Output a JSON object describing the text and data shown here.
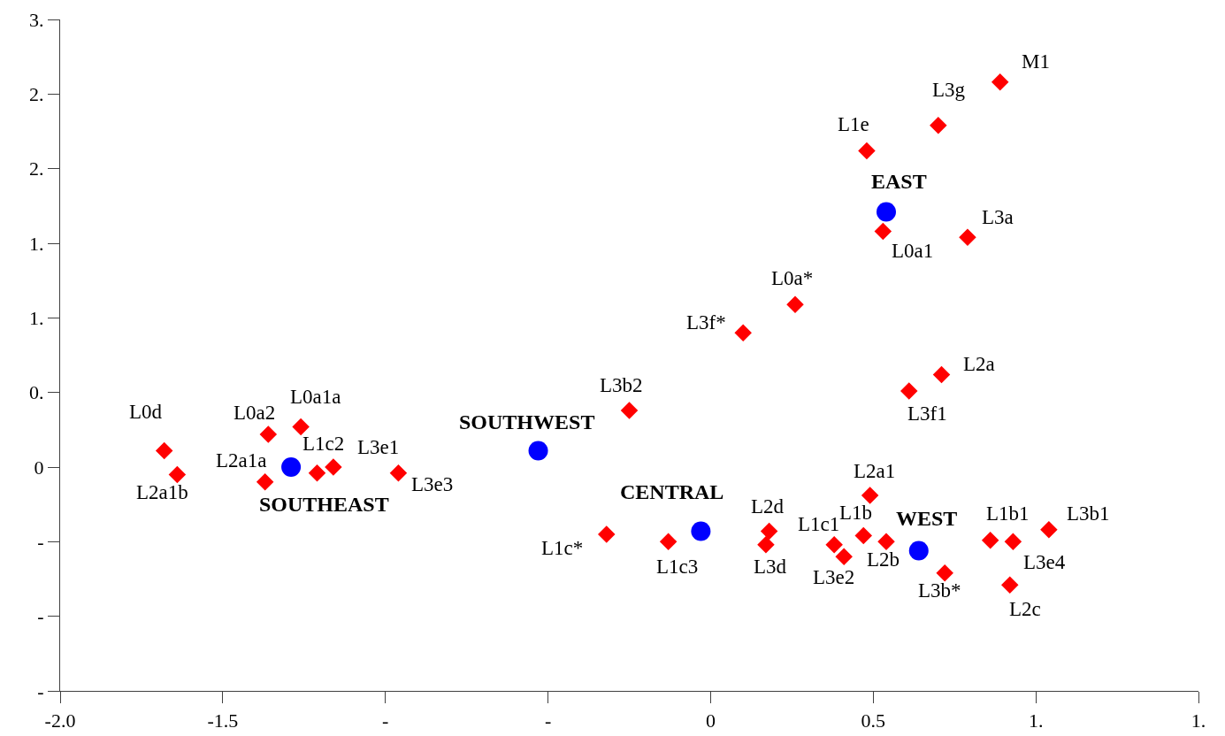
{
  "chart_data": {
    "type": "scatter",
    "xlim": [
      -2.0,
      1.5
    ],
    "ylim": [
      -1.5,
      3.0
    ],
    "xticks": [
      {
        "value": -2.0,
        "label": "-2.0"
      },
      -1.5,
      {
        "value": -1.0,
        "label": "-"
      },
      {
        "value": -0.5,
        "label": "-"
      },
      0,
      0.5,
      {
        "value": 1.0,
        "label": "1."
      },
      {
        "value": 1.5,
        "label": "1."
      }
    ],
    "yticks": [
      {
        "value": -1.5,
        "label": "-"
      },
      {
        "value": -1.0,
        "label": "-"
      },
      {
        "value": -0.5,
        "label": "-"
      },
      0,
      {
        "value": 0.5,
        "label": "0."
      },
      {
        "value": 1.0,
        "label": "1."
      },
      {
        "value": 1.5,
        "label": "1."
      },
      {
        "value": 2.0,
        "label": "2."
      },
      {
        "value": 2.5,
        "label": "2."
      },
      {
        "value": 3.0,
        "label": "3."
      }
    ],
    "series": [
      {
        "color": "#0000ff",
        "marker": "circle",
        "x": [
          -1.29,
          -0.53,
          -0.03,
          0.64,
          0.54
        ],
        "values": [
          0.0,
          0.11,
          -0.43,
          -0.56,
          1.71
        ]
      },
      {
        "color": "#ff0000",
        "marker": "diamond",
        "x": [
          -1.68,
          -1.64,
          -1.36,
          -1.26,
          -1.37,
          -1.21,
          -1.16,
          -0.96,
          -0.25,
          0.1,
          0.26,
          0.48,
          0.7,
          0.89,
          0.53,
          0.79,
          0.71,
          0.61,
          0.49,
          -0.32,
          -0.13,
          0.18,
          0.17,
          0.38,
          0.41,
          0.47,
          0.54,
          0.72,
          0.86,
          0.93,
          1.04,
          0.92
        ],
        "values": [
          0.11,
          -0.05,
          0.22,
          0.27,
          -0.1,
          -0.04,
          0.0,
          -0.04,
          0.38,
          0.9,
          1.09,
          2.12,
          2.29,
          2.58,
          1.58,
          1.54,
          0.62,
          0.51,
          -0.19,
          -0.45,
          -0.5,
          -0.43,
          -0.52,
          -0.52,
          -0.6,
          -0.46,
          -0.5,
          -0.71,
          -0.49,
          -0.5,
          -0.42,
          -0.79
        ]
      }
    ],
    "annotations": [
      {
        "text": "SOUTHEAST",
        "x": -1.29,
        "y": 0.0
      },
      {
        "text": "SOUTHWEST",
        "x": -0.53,
        "y": 0.11
      },
      {
        "text": "CENTRAL",
        "x": -0.03,
        "y": -0.43
      },
      {
        "text": "WEST",
        "x": 0.64,
        "y": -0.56
      },
      {
        "text": "EAST",
        "x": 0.54,
        "y": 1.71
      },
      {
        "text": "L0d",
        "x": -1.68,
        "y": 0.11
      },
      {
        "text": "L2a1b",
        "x": -1.64,
        "y": -0.05
      },
      {
        "text": "L0a2",
        "x": -1.36,
        "y": 0.22
      },
      {
        "text": "L0a1a",
        "x": -1.26,
        "y": 0.27
      },
      {
        "text": "L2a1a",
        "x": -1.37,
        "y": -0.1
      },
      {
        "text": "L1c2",
        "x": -1.21,
        "y": -0.04
      },
      {
        "text": "L3e1",
        "x": -1.16,
        "y": 0.0
      },
      {
        "text": "L3e3",
        "x": -0.96,
        "y": -0.04
      },
      {
        "text": "L3b2",
        "x": -0.25,
        "y": 0.38
      },
      {
        "text": "L3f*",
        "x": 0.1,
        "y": 0.9
      },
      {
        "text": "L0a*",
        "x": 0.26,
        "y": 1.09
      },
      {
        "text": "L1e",
        "x": 0.48,
        "y": 2.12
      },
      {
        "text": "L3g",
        "x": 0.7,
        "y": 2.29
      },
      {
        "text": "M1",
        "x": 0.89,
        "y": 2.58
      },
      {
        "text": "L0a1",
        "x": 0.53,
        "y": 1.58
      },
      {
        "text": "L3a",
        "x": 0.79,
        "y": 1.54
      },
      {
        "text": "L2a",
        "x": 0.71,
        "y": 0.62
      },
      {
        "text": "L3f1",
        "x": 0.61,
        "y": 0.51
      },
      {
        "text": "L2a1",
        "x": 0.49,
        "y": -0.19
      },
      {
        "text": "L1c*",
        "x": -0.32,
        "y": -0.45
      },
      {
        "text": "L1c3",
        "x": -0.13,
        "y": -0.5
      },
      {
        "text": "L2d",
        "x": 0.18,
        "y": -0.43
      },
      {
        "text": "L3d",
        "x": 0.17,
        "y": -0.52
      },
      {
        "text": "L1c1",
        "x": 0.38,
        "y": -0.52
      },
      {
        "text": "L3e2",
        "x": 0.41,
        "y": -0.6
      },
      {
        "text": "L1b",
        "x": 0.47,
        "y": -0.46
      },
      {
        "text": "L2b",
        "x": 0.54,
        "y": -0.5
      },
      {
        "text": "L3b*",
        "x": 0.72,
        "y": -0.71
      },
      {
        "text": "L1b1",
        "x": 0.86,
        "y": -0.49
      },
      {
        "text": "L3e4",
        "x": 0.93,
        "y": -0.5
      },
      {
        "text": "L3b1",
        "x": 1.04,
        "y": -0.42
      },
      {
        "text": "L2c",
        "x": 0.92,
        "y": -0.79
      }
    ]
  }
}
